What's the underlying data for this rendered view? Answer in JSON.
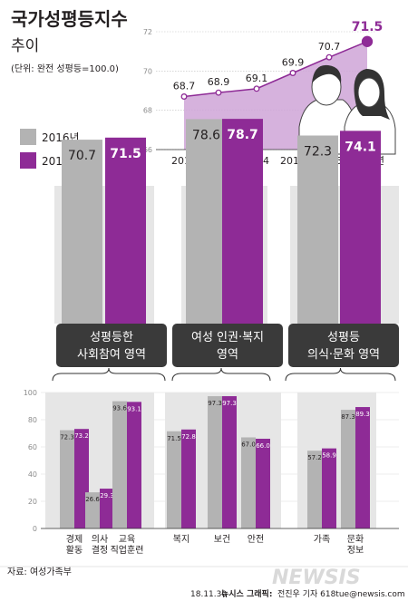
{
  "header": {
    "title": "국가성평등지수",
    "subtitle": "추이",
    "unit_note": "(단위: 완전 성평등=100.0)"
  },
  "legend": [
    {
      "label": "2016년",
      "color": "#b3b3b3"
    },
    {
      "label": "2017년",
      "color": "#8e2b96"
    }
  ],
  "colors": {
    "y2016": "#b3b3b3",
    "y2017": "#8e2b96",
    "trend_fill": "#cfa4d7",
    "trend_line": "#8e2b96",
    "track": "#e6e6e6",
    "dark_label_bg": "#3a3a3a"
  },
  "chart_data": [
    {
      "type": "area",
      "x": [
        "2012",
        "2013",
        "2014",
        "2015",
        "2016",
        "2017년"
      ],
      "values": [
        68.7,
        68.9,
        69.1,
        69.9,
        70.7,
        71.5
      ],
      "ylim": [
        66,
        72
      ],
      "yticks": [
        "66",
        "68",
        "70",
        "72"
      ],
      "grid": true
    },
    {
      "type": "bar",
      "categories": [
        "성평등한 사회참여 영역",
        "여성 인권·복지 영역",
        "성평등 의식·문화 영역"
      ],
      "series": [
        {
          "name": "2016년",
          "values": [
            70.7,
            78.6,
            72.3
          ]
        },
        {
          "name": "2017년",
          "values": [
            71.5,
            78.7,
            74.1
          ]
        }
      ]
    },
    {
      "type": "bar",
      "categories": [
        "경제 활동",
        "의사 결정",
        "교육 직업훈련",
        "복지",
        "보건",
        "안전",
        "가족",
        "문화 정보"
      ],
      "series": [
        {
          "name": "2016년",
          "values": [
            72.3,
            26.6,
            93.6,
            71.5,
            97.3,
            67.0,
            57.2,
            87.3
          ]
        },
        {
          "name": "2017년",
          "values": [
            73.2,
            29.3,
            93.1,
            72.8,
            97.3,
            66.0,
            58.9,
            89.3
          ]
        }
      ],
      "ylim": [
        0,
        100
      ],
      "yticks": [
        "0",
        "20",
        "40",
        "60",
        "80",
        "100"
      ]
    }
  ],
  "domain_labels": [
    [
      "성평등한",
      "사회참여 영역"
    ],
    [
      "여성 인권·복지",
      "영역"
    ],
    [
      "성평등",
      "의식·문화 영역"
    ]
  ],
  "sub_labels": [
    [
      "경제",
      "활동"
    ],
    [
      "의사",
      "결정"
    ],
    [
      "교육",
      "직업훈련"
    ],
    [
      "복지"
    ],
    [
      "보건"
    ],
    [
      "안전"
    ],
    [
      "가족"
    ],
    [
      "문화",
      "정보"
    ]
  ],
  "footer": {
    "source": "자료: 여성가족부",
    "date": "18.11.30",
    "agency": "뉴시스 그래픽:",
    "credit": "전진우 기자 618tue@newsis.com",
    "logo": "NEWSIS"
  }
}
